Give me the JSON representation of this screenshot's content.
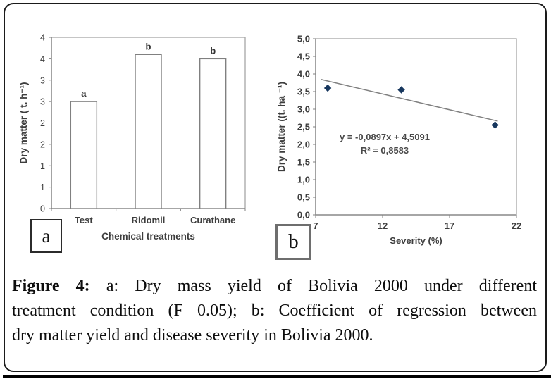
{
  "figure": {
    "panel_a_label": "a",
    "panel_b_label": "b",
    "caption": {
      "label": "Figure 4:",
      "line1_rest": "a: Dry mass yield of Bolivia 2000 under different",
      "line2": "treatment condition (F 0.05); b: Coefficient of regression between",
      "line3": "dry matter yield and disease severity in Bolivia 2000."
    }
  },
  "chart_data": [
    {
      "type": "bar",
      "panel": "a",
      "categories": [
        "Test",
        "Ridomil",
        "Curathane"
      ],
      "values": [
        2.5,
        3.6,
        3.5
      ],
      "significance_letters": [
        "a",
        "b",
        "b"
      ],
      "title": "",
      "xlabel": "Chemical treatments",
      "ylabel": "Dry matter ( t. h⁻¹)",
      "ylim": [
        0,
        4
      ],
      "ytick_step": 0.5,
      "ytick_labels": [
        "0",
        "1",
        "1",
        "2",
        "2",
        "3",
        "3",
        "4",
        "4"
      ],
      "grid": false,
      "legend": false,
      "bar_fill": "#ffffff",
      "bar_stroke": "#808080"
    },
    {
      "type": "scatter",
      "panel": "b",
      "points": [
        {
          "x": 7.9,
          "y": 3.6
        },
        {
          "x": 13.4,
          "y": 3.55
        },
        {
          "x": 20.4,
          "y": 2.55
        }
      ],
      "title": "",
      "xlabel": "Severity (%)",
      "ylabel": "Dry matter ((t. ha ⁻¹)",
      "xlim": [
        7,
        22
      ],
      "xtick_values": [
        7,
        12,
        17,
        22
      ],
      "xtick_labels": [
        "7",
        "12",
        "17",
        "22"
      ],
      "ylim": [
        0,
        5
      ],
      "ytick_step": 0.5,
      "ytick_labels": [
        "0,0",
        "0,5",
        "1,0",
        "1,5",
        "2,0",
        "2,5",
        "3,0",
        "3,5",
        "4,0",
        "4,5",
        "5,0"
      ],
      "grid": false,
      "legend": false,
      "trend": {
        "slope": -0.0897,
        "intercept": 4.5091,
        "x_range": [
          7.4,
          20.6
        ],
        "equation_label": "y = -0,0897x + 4,5091",
        "r2_label": "R² = 0,8583"
      },
      "marker_color": "#17375e",
      "line_color": "#808080"
    }
  ]
}
